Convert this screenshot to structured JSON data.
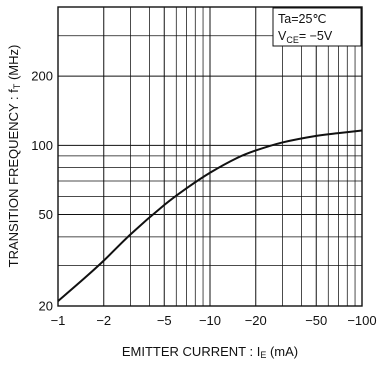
{
  "chart_data": {
    "type": "line",
    "x_scale": "log",
    "y_scale": "log",
    "xlim": [
      -1,
      -100
    ],
    "ylim": [
      20,
      400
    ],
    "x_ticks": [
      {
        "value": -1,
        "label": "−1"
      },
      {
        "value": -2,
        "label": "−2"
      },
      {
        "value": -5,
        "label": "−5"
      },
      {
        "value": -10,
        "label": "−10"
      },
      {
        "value": -20,
        "label": "−20"
      },
      {
        "value": -50,
        "label": "−50"
      },
      {
        "value": -100,
        "label": "−100"
      }
    ],
    "y_ticks": [
      {
        "value": 20,
        "label": "20"
      },
      {
        "value": 50,
        "label": "50"
      },
      {
        "value": 100,
        "label": "100"
      },
      {
        "value": 200,
        "label": "200"
      }
    ],
    "xlabel_main": "EMITTER  CURRENT : I",
    "xlabel_sub": "E",
    "xlabel_unit": " (mA)",
    "ylabel_main": "TRANSITION  FREQUENCY : f",
    "ylabel_sub": "T",
    "ylabel_unit": " (MHz)",
    "conditions": {
      "line1": "Ta=25℃",
      "line2_main": "V",
      "line2_sub": "CE",
      "line2_value": "= −5V"
    },
    "grid": true,
    "series": [
      {
        "x": [
          -1,
          -1.5,
          -2,
          -3,
          -5,
          -7,
          -10,
          -15,
          -20,
          -30,
          -50,
          -70,
          -100
        ],
        "y": [
          21,
          26.5,
          31.5,
          41,
          55,
          65,
          76,
          88,
          95,
          103,
          110,
          113,
          116
        ]
      }
    ]
  }
}
